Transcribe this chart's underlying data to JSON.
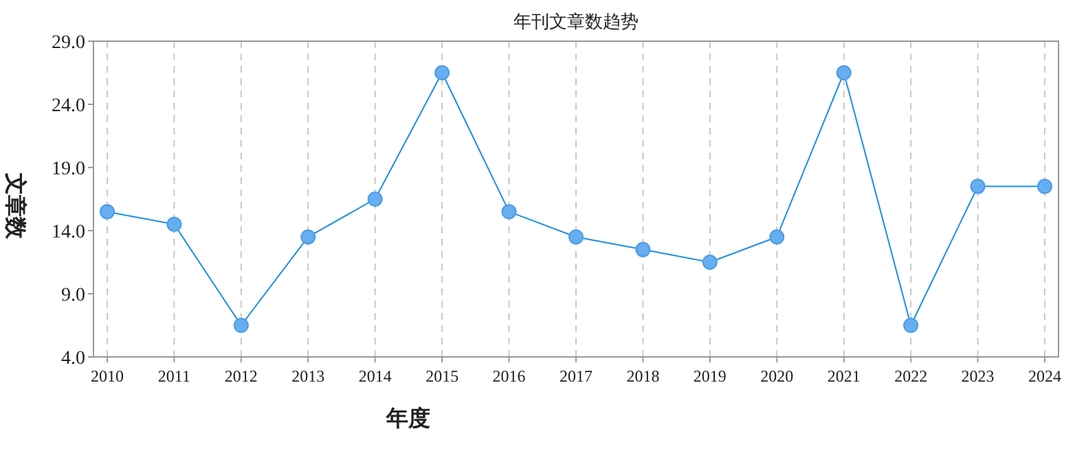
{
  "chart_data": {
    "type": "line",
    "title": "年刊文章数趋势",
    "xlabel": "年度",
    "ylabel": "文章数",
    "categories": [
      "2010",
      "2011",
      "2012",
      "2013",
      "2014",
      "2015",
      "2016",
      "2017",
      "2018",
      "2019",
      "2020",
      "2021",
      "2022",
      "2023",
      "2024"
    ],
    "series": [
      {
        "color": "#1a8fe6",
        "values": [
          15.5,
          14.5,
          6.5,
          13.5,
          16.5,
          26.5,
          15.5,
          13.5,
          12.5,
          11.5,
          13.5,
          26.5,
          6.5,
          17.5,
          17.5
        ]
      }
    ],
    "ylim": [
      4,
      29
    ],
    "yticks": [
      {
        "value": 4,
        "label": "4.0"
      },
      {
        "value": 9,
        "label": "9.0"
      },
      {
        "value": 14,
        "label": "14.0"
      },
      {
        "value": 19,
        "label": "19.0"
      },
      {
        "value": 24,
        "label": "24.0"
      },
      {
        "value": 29,
        "label": "29.0"
      }
    ],
    "grid": "x",
    "marker": "circle",
    "line_style": "solid"
  }
}
